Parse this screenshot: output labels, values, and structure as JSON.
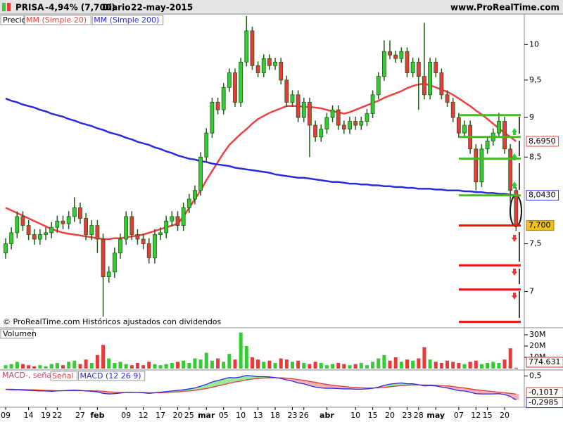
{
  "header": {
    "ticker": "PRISA",
    "change": "-4,94% (7,700)",
    "period": "Diario",
    "date": "22-may-2015",
    "site": "www.ProRealTime.com"
  },
  "footer": "© ProRealTime.com Históricos ajustados con dividendos",
  "chart_data": [
    {
      "type": "candlestick",
      "legend": "Precio",
      "log": true,
      "ylim": [
        6.67,
        10.45
      ],
      "yticks": [
        10,
        {
          "value": 9.5,
          "label": "9,5"
        },
        9,
        {
          "value": 8.5,
          "label": "8,5"
        },
        {
          "value": 7.5,
          "label": "7,5"
        },
        7
      ],
      "up_color": "#33cc33",
      "down_color": "#e83a3a",
      "wick_color": "#1e5a14",
      "last_label": "7,700",
      "open": [
        7.4,
        7.5,
        7.62,
        7.8,
        7.7,
        7.6,
        7.55,
        7.6,
        7.62,
        7.68,
        7.75,
        7.72,
        7.8,
        7.9,
        7.78,
        7.6,
        7.7,
        7.55,
        7.15,
        7.2,
        7.4,
        7.55,
        7.8,
        7.6,
        7.55,
        7.5,
        7.35,
        7.6,
        7.62,
        7.75,
        7.8,
        7.7,
        7.9,
        8.0,
        8.1,
        8.5,
        8.8,
        9.2,
        9.1,
        9.4,
        9.6,
        9.2,
        9.75,
        10.2,
        9.7,
        9.6,
        9.8,
        9.7,
        9.75,
        9.5,
        9.2,
        9.3,
        9.0,
        9.2,
        8.9,
        8.75,
        8.85,
        9.0,
        9.1,
        8.9,
        8.85,
        8.95,
        8.9,
        8.95,
        9.05,
        9.3,
        9.55,
        9.9,
        9.85,
        9.8,
        9.9,
        9.6,
        9.75,
        9.55,
        9.3,
        9.75,
        9.6,
        9.3,
        9.2,
        9.0,
        8.8,
        8.9,
        8.6,
        8.2,
        8.6,
        8.7,
        8.8,
        8.95,
        8.6,
        8.1
      ],
      "high": [
        7.56,
        7.68,
        7.86,
        7.86,
        7.76,
        7.66,
        7.66,
        7.68,
        7.74,
        7.81,
        7.81,
        7.86,
        8.02,
        7.96,
        7.84,
        7.76,
        7.76,
        7.61,
        7.26,
        7.46,
        7.61,
        7.86,
        7.86,
        7.66,
        7.61,
        7.56,
        7.66,
        7.68,
        7.81,
        7.86,
        7.86,
        7.96,
        8.06,
        8.16,
        8.56,
        8.86,
        9.26,
        9.26,
        9.46,
        9.66,
        9.66,
        9.81,
        10.42,
        10.26,
        9.76,
        9.86,
        9.86,
        9.81,
        9.81,
        9.56,
        9.36,
        9.36,
        9.26,
        9.26,
        8.96,
        8.91,
        9.06,
        9.16,
        9.16,
        8.96,
        9.01,
        9.01,
        9.01,
        9.11,
        9.36,
        9.61,
        10.06,
        10.06,
        9.91,
        9.96,
        9.96,
        9.81,
        9.81,
        10.32,
        9.81,
        9.81,
        9.66,
        9.36,
        9.26,
        9.06,
        8.96,
        8.96,
        8.66,
        8.66,
        8.76,
        8.86,
        9.06,
        9.01,
        8.66,
        8.14
      ],
      "low": [
        7.34,
        7.44,
        7.56,
        7.64,
        7.54,
        7.49,
        7.49,
        7.54,
        7.56,
        7.62,
        7.66,
        7.66,
        7.74,
        7.72,
        7.54,
        7.54,
        7.4,
        6.75,
        7.09,
        7.14,
        7.34,
        7.49,
        7.54,
        7.49,
        7.44,
        7.29,
        7.29,
        7.54,
        7.56,
        7.69,
        7.64,
        7.64,
        7.84,
        7.94,
        8.04,
        8.44,
        8.74,
        9.04,
        9.04,
        9.34,
        9.14,
        9.14,
        9.69,
        9.64,
        9.54,
        9.54,
        9.64,
        9.64,
        9.44,
        9.14,
        9.14,
        8.94,
        8.94,
        8.5,
        8.69,
        8.69,
        8.79,
        8.94,
        8.84,
        8.79,
        8.79,
        8.84,
        8.84,
        8.89,
        8.99,
        9.24,
        9.49,
        9.79,
        9.74,
        9.74,
        9.54,
        9.54,
        9.1,
        9.24,
        9.24,
        9.54,
        9.24,
        9.14,
        8.94,
        8.74,
        8.74,
        8.54,
        8.1,
        8.14,
        8.54,
        8.64,
        8.74,
        8.54,
        7.95,
        7.64
      ],
      "close": [
        7.5,
        7.62,
        7.8,
        7.7,
        7.6,
        7.55,
        7.6,
        7.62,
        7.68,
        7.75,
        7.72,
        7.8,
        7.9,
        7.78,
        7.6,
        7.7,
        7.55,
        7.15,
        7.2,
        7.4,
        7.55,
        7.8,
        7.6,
        7.55,
        7.5,
        7.35,
        7.6,
        7.62,
        7.75,
        7.8,
        7.7,
        7.9,
        8.0,
        8.1,
        8.5,
        8.8,
        9.2,
        9.1,
        9.4,
        9.6,
        9.2,
        9.75,
        10.2,
        9.7,
        9.6,
        9.8,
        9.7,
        9.75,
        9.5,
        9.2,
        9.3,
        9.0,
        9.2,
        8.9,
        8.75,
        8.85,
        9.0,
        9.1,
        8.9,
        8.85,
        8.95,
        8.9,
        8.95,
        9.05,
        9.3,
        9.55,
        9.9,
        9.85,
        9.8,
        9.9,
        9.6,
        9.75,
        9.55,
        9.3,
        9.75,
        9.6,
        9.3,
        9.2,
        9.0,
        8.8,
        8.9,
        8.6,
        8.2,
        8.6,
        8.7,
        8.8,
        8.95,
        8.6,
        8.1,
        7.7
      ],
      "series": [
        {
          "name": "MM (Simple 20)",
          "color": "#f04040",
          "last_label": "8,6950",
          "values": [
            7.9,
            7.87,
            7.84,
            7.81,
            7.78,
            7.75,
            7.72,
            7.69,
            7.66,
            7.64,
            7.62,
            7.61,
            7.6,
            7.59,
            7.58,
            7.57,
            7.56,
            7.55,
            7.55,
            7.56,
            7.56,
            7.57,
            7.58,
            7.59,
            7.6,
            7.62,
            7.64,
            7.66,
            7.68,
            7.7,
            7.72,
            7.8,
            7.9,
            8.0,
            8.1,
            8.22,
            8.33,
            8.44,
            8.55,
            8.65,
            8.72,
            8.79,
            8.85,
            8.92,
            8.98,
            9.02,
            9.06,
            9.09,
            9.12,
            9.15,
            9.15,
            9.15,
            9.14,
            9.14,
            9.13,
            9.12,
            9.1,
            9.08,
            9.07,
            9.05,
            9.07,
            9.1,
            9.13,
            9.16,
            9.19,
            9.22,
            9.26,
            9.29,
            9.32,
            9.35,
            9.39,
            9.42,
            9.44,
            9.45,
            9.43,
            9.4,
            9.37,
            9.34,
            9.3,
            9.25,
            9.2,
            9.15,
            9.09,
            9.04,
            8.98,
            8.92,
            8.86,
            8.8,
            8.75,
            8.695
          ]
        },
        {
          "name": "MM (Simple 200)",
          "color": "#2a2ae0",
          "last_label": "8,0430",
          "values": [
            9.25,
            9.22,
            9.2,
            9.17,
            9.15,
            9.13,
            9.1,
            9.08,
            9.05,
            9.03,
            9.01,
            8.98,
            8.96,
            8.93,
            8.91,
            8.89,
            8.86,
            8.84,
            8.81,
            8.79,
            8.77,
            8.74,
            8.72,
            8.69,
            8.67,
            8.65,
            8.62,
            8.6,
            8.57,
            8.55,
            8.52,
            8.5,
            8.48,
            8.47,
            8.45,
            8.44,
            8.42,
            8.41,
            8.4,
            8.39,
            8.37,
            8.36,
            8.35,
            8.34,
            8.33,
            8.32,
            8.31,
            8.29,
            8.28,
            8.27,
            8.26,
            8.25,
            8.25,
            8.24,
            8.23,
            8.22,
            8.21,
            8.2,
            8.2,
            8.19,
            8.18,
            8.18,
            8.17,
            8.17,
            8.16,
            8.16,
            8.15,
            8.15,
            8.14,
            8.14,
            8.13,
            8.13,
            8.12,
            8.12,
            8.12,
            8.11,
            8.11,
            8.1,
            8.1,
            8.1,
            8.09,
            8.09,
            8.08,
            8.08,
            8.07,
            8.07,
            8.06,
            8.06,
            8.05,
            8.043
          ]
        }
      ],
      "levels": [
        {
          "value": 9.03,
          "color": "#44bb22"
        },
        {
          "value": 8.75,
          "color": "#44bb22"
        },
        {
          "value": 8.48,
          "color": "#44bb22"
        },
        {
          "value": 8.043,
          "color": "#44bb22"
        },
        {
          "value": 7.7,
          "color": "#ee1111"
        },
        {
          "value": 7.27,
          "color": "#ee1111"
        },
        {
          "value": 7.02,
          "color": "#ee1111"
        },
        {
          "value": 6.7,
          "color": "#ee1111"
        }
      ]
    },
    {
      "type": "bar",
      "title": "Volumen",
      "ylim": [
        0,
        35
      ],
      "yticks": [
        {
          "value": 10,
          "label": "10M"
        },
        {
          "value": 20,
          "label": "20M"
        },
        {
          "value": 30,
          "label": "30M"
        }
      ],
      "last_label": "774.631",
      "values": [
        3,
        4,
        6,
        4,
        3,
        2,
        3,
        2,
        4,
        5,
        3,
        6,
        7,
        4,
        8,
        5,
        12,
        21,
        9,
        5,
        6,
        4,
        3,
        5,
        3,
        6,
        4,
        3,
        4,
        5,
        6,
        7,
        5,
        9,
        8,
        14,
        7,
        9,
        6,
        13,
        8,
        32,
        20,
        10,
        8,
        6,
        7,
        5,
        9,
        8,
        6,
        7,
        5,
        4,
        6,
        5,
        3,
        4,
        5,
        4,
        3,
        4,
        5,
        3,
        6,
        9,
        12,
        7,
        10,
        6,
        8,
        7,
        9,
        19,
        8,
        6,
        5,
        7,
        6,
        5,
        4,
        6,
        7,
        4,
        5,
        6,
        5,
        8,
        18,
        0.774631
      ]
    },
    {
      "type": "line",
      "title": "MACD-, señal",
      "ylim": [
        -0.52,
        0.68
      ],
      "yticks": [
        {
          "value": 0.5,
          "label": "0,5"
        }
      ],
      "up_fill": "#9be89b",
      "down_fill": "#f4b0b8",
      "categories": [
        "09",
        null,
        null,
        null,
        "14",
        null,
        null,
        "19",
        null,
        "22",
        null,
        null,
        null,
        "27",
        null,
        null,
        "feb",
        null,
        null,
        null,
        null,
        "09",
        null,
        null,
        "12",
        null,
        null,
        "17",
        null,
        null,
        "20",
        null,
        "25",
        null,
        null,
        "mar",
        null,
        null,
        "05",
        null,
        null,
        "10",
        null,
        null,
        "13",
        null,
        null,
        "18",
        null,
        null,
        "23",
        null,
        "26",
        null,
        null,
        null,
        "abr",
        null,
        null,
        null,
        null,
        "10",
        null,
        null,
        "15",
        null,
        null,
        "20",
        null,
        null,
        "23",
        null,
        "28",
        null,
        null,
        "may",
        null,
        null,
        null,
        "07",
        null,
        null,
        "12",
        null,
        "15",
        null,
        null,
        "20",
        null,
        null
      ],
      "series": [
        {
          "name": "Señal",
          "color": "#e83a3a",
          "last_label": "-0,1017",
          "values": [
            0.06,
            0.06,
            0.05,
            0.05,
            0.04,
            0.04,
            0.03,
            0.02,
            0.02,
            0.01,
            0.01,
            0.01,
            0.01,
            0.01,
            0.01,
            0.01,
            0.0,
            -0.01,
            -0.03,
            -0.04,
            -0.05,
            -0.05,
            -0.05,
            -0.05,
            -0.05,
            -0.06,
            -0.06,
            -0.06,
            -0.05,
            -0.04,
            -0.03,
            -0.01,
            0.0,
            0.02,
            0.05,
            0.08,
            0.12,
            0.17,
            0.21,
            0.26,
            0.3,
            0.33,
            0.37,
            0.4,
            0.42,
            0.43,
            0.44,
            0.44,
            0.44,
            0.43,
            0.41,
            0.38,
            0.36,
            0.32,
            0.29,
            0.25,
            0.22,
            0.19,
            0.17,
            0.15,
            0.13,
            0.12,
            0.11,
            0.1,
            0.1,
            0.1,
            0.12,
            0.14,
            0.16,
            0.18,
            0.19,
            0.2,
            0.2,
            0.2,
            0.2,
            0.19,
            0.18,
            0.17,
            0.15,
            0.12,
            0.1,
            0.07,
            0.04,
            0.02,
            0.0,
            -0.02,
            -0.04,
            -0.06,
            -0.08,
            -0.1017
          ]
        },
        {
          "name": "MACD (12 26 9)",
          "color": "#2a2ae0",
          "last_label": "-0,2985",
          "values": [
            0.05,
            0.04,
            0.04,
            0.03,
            0.02,
            0.01,
            0.0,
            0.0,
            -0.01,
            0.0,
            0.01,
            0.02,
            0.03,
            0.02,
            0.0,
            -0.01,
            -0.03,
            -0.08,
            -0.1,
            -0.09,
            -0.07,
            -0.04,
            -0.04,
            -0.05,
            -0.06,
            -0.08,
            -0.06,
            -0.04,
            -0.02,
            0.0,
            0.02,
            0.04,
            0.07,
            0.1,
            0.16,
            0.22,
            0.3,
            0.35,
            0.4,
            0.45,
            0.44,
            0.47,
            0.52,
            0.5,
            0.48,
            0.48,
            0.47,
            0.45,
            0.42,
            0.37,
            0.33,
            0.27,
            0.24,
            0.18,
            0.13,
            0.1,
            0.09,
            0.09,
            0.08,
            0.07,
            0.07,
            0.06,
            0.06,
            0.07,
            0.09,
            0.13,
            0.19,
            0.23,
            0.25,
            0.27,
            0.24,
            0.24,
            0.21,
            0.17,
            0.18,
            0.17,
            0.13,
            0.1,
            0.06,
            0.01,
            0.0,
            -0.04,
            -0.09,
            -0.1,
            -0.1,
            -0.1,
            -0.09,
            -0.12,
            -0.18,
            -0.2985
          ]
        }
      ]
    }
  ]
}
